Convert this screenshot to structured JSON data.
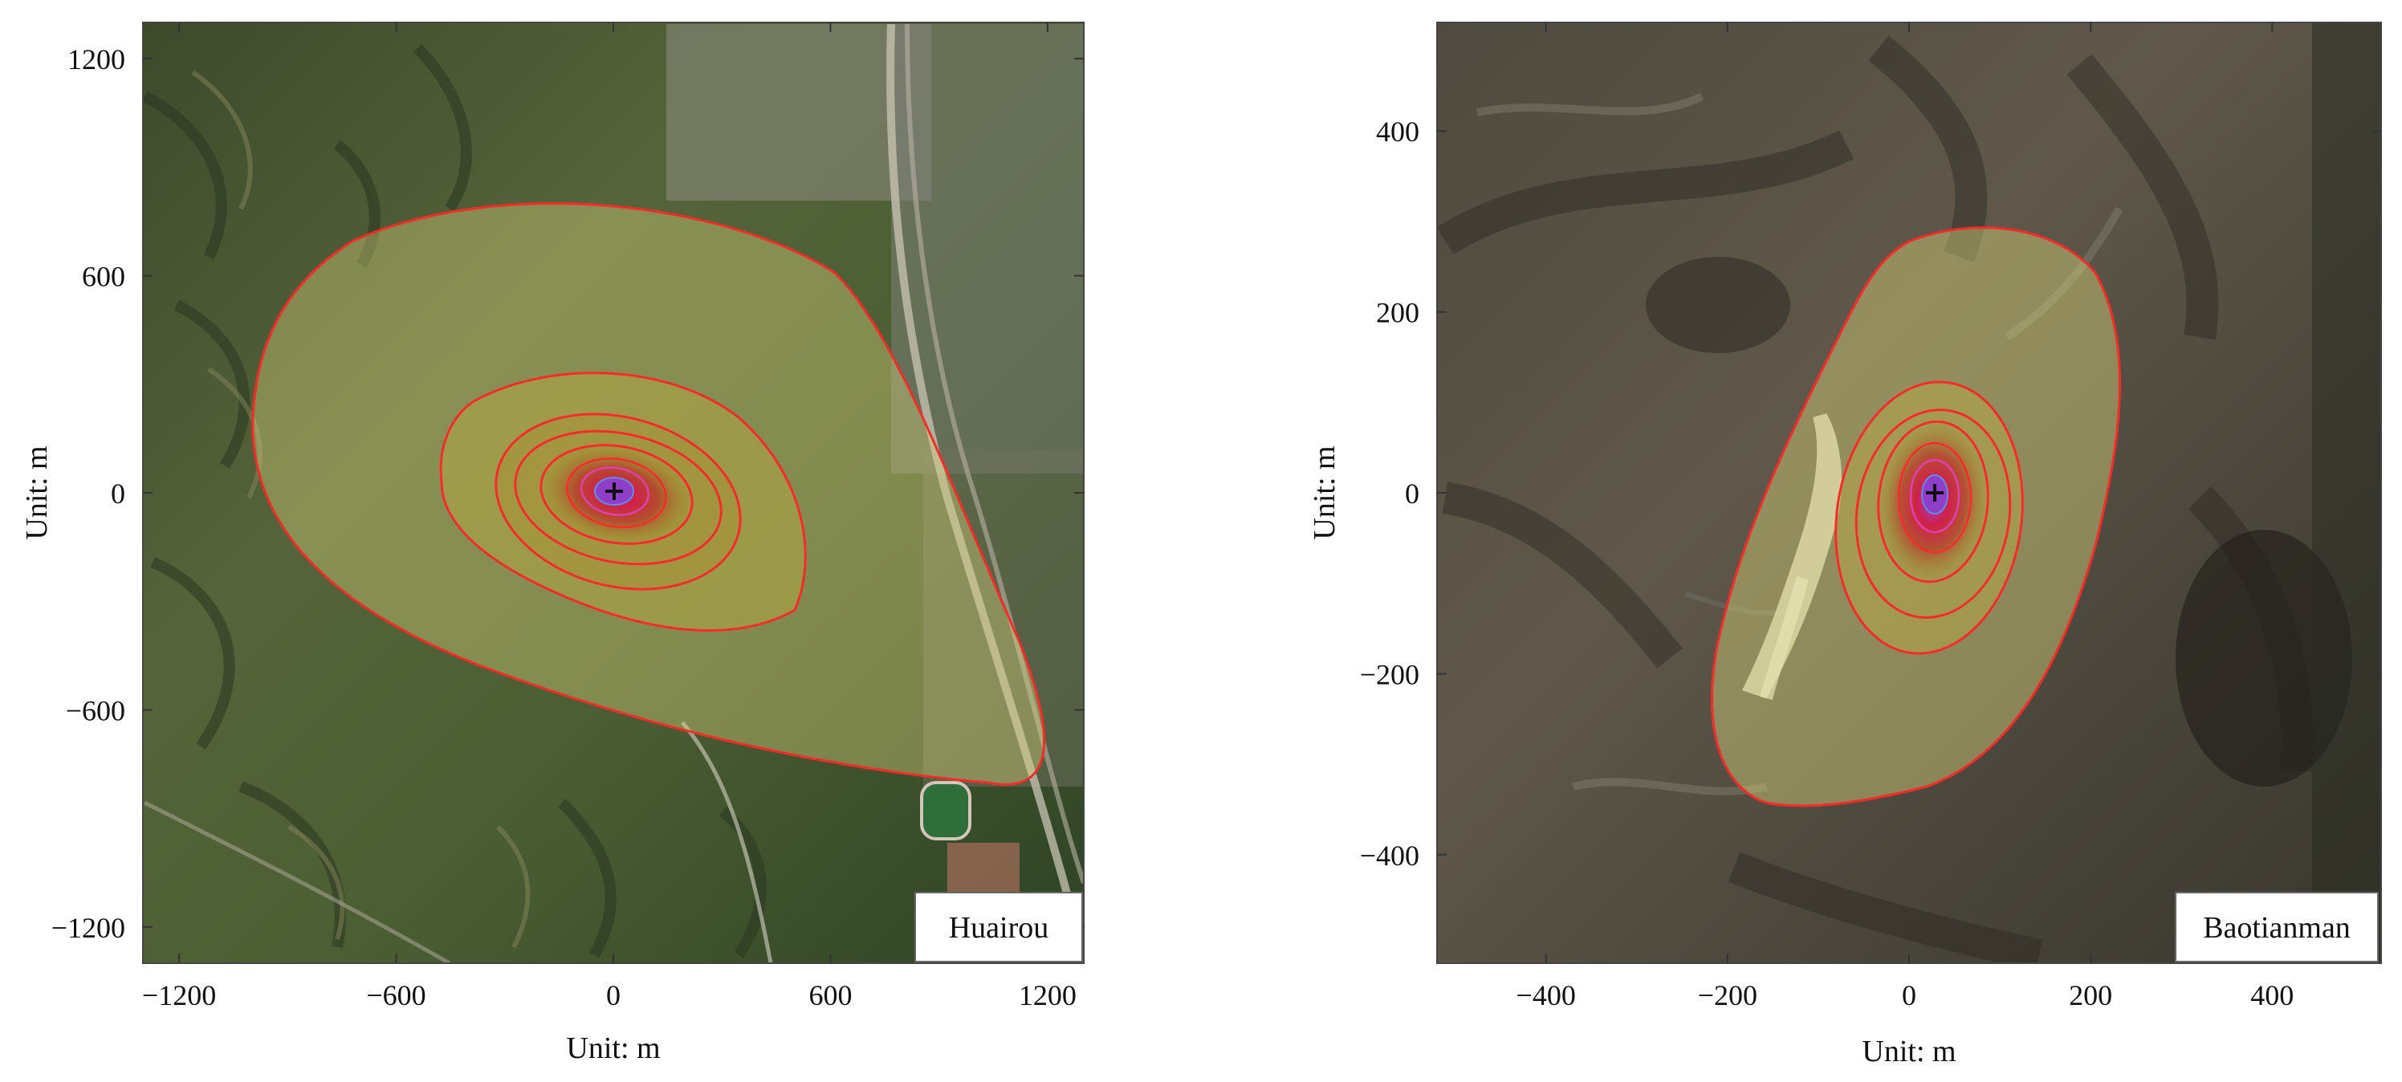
{
  "maps": [
    {
      "site": "Huairou",
      "xlabel": "Unit: m",
      "ylabel": "Unit: m",
      "range": [
        -1300,
        1300
      ],
      "x_ticks": [
        {
          "value": -1200,
          "label": "−1200"
        },
        {
          "value": -600,
          "label": "−600"
        },
        {
          "value": 0,
          "label": "0"
        },
        {
          "value": 600,
          "label": "600"
        },
        {
          "value": 1200,
          "label": "1200"
        }
      ],
      "y_ticks": [
        {
          "value": 1200,
          "label": "1200"
        },
        {
          "value": 600,
          "label": "600"
        },
        {
          "value": 0,
          "label": "0"
        },
        {
          "value": -600,
          "label": "−600"
        },
        {
          "value": -1200,
          "label": "−1200"
        }
      ],
      "contour_color": "#ff2a2a"
    },
    {
      "site": "Baotianman",
      "xlabel": "Unit: m",
      "ylabel": "Unit: m",
      "range": [
        -520,
        520
      ],
      "x_ticks": [
        {
          "value": -400,
          "label": "−400"
        },
        {
          "value": -200,
          "label": "−200"
        },
        {
          "value": 0,
          "label": "0"
        },
        {
          "value": 200,
          "label": "200"
        },
        {
          "value": 400,
          "label": "400"
        }
      ],
      "y_ticks": [
        {
          "value": 400,
          "label": "400"
        },
        {
          "value": 200,
          "label": "200"
        },
        {
          "value": 0,
          "label": "0"
        },
        {
          "value": -200,
          "label": "−200"
        },
        {
          "value": -400,
          "label": "−400"
        }
      ],
      "contour_color": "#ff2a2a"
    }
  ]
}
